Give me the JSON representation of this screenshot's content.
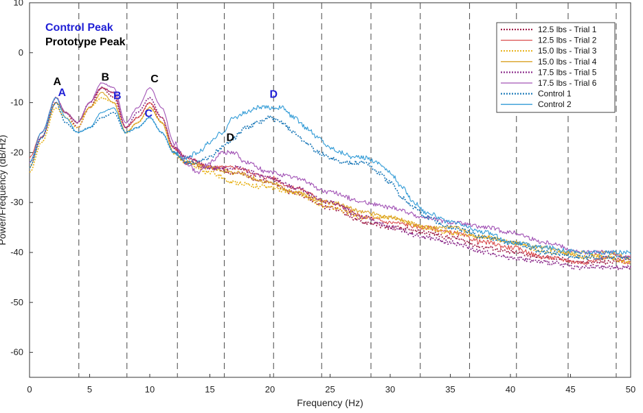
{
  "chart_data": {
    "type": "line",
    "title": "",
    "xlabel": "Frequency (Hz)",
    "ylabel": "Power/Frequency (dB/Hz)",
    "xlim": [
      0,
      50
    ],
    "ylim": [
      -65,
      10
    ],
    "x_ticks": [
      0,
      5,
      10,
      15,
      20,
      25,
      30,
      35,
      40,
      45,
      50
    ],
    "y_ticks": [
      10,
      0,
      -10,
      -20,
      -30,
      -40,
      -50,
      -60
    ],
    "grid": "dashed vertical lines",
    "vertical_dashed_lines": [
      4.1,
      8.1,
      12.3,
      16.2,
      20.3,
      24.3,
      28.4,
      32.5,
      36.6,
      40.5,
      44.8,
      48.8
    ],
    "legend_position": "top-right",
    "key": [
      {
        "text": "Control Peak",
        "color": "#1f1fd6"
      },
      {
        "text": "Prototype Peak",
        "color": "#000000"
      }
    ],
    "series": [
      {
        "name": "12.5 lbs - Trial 1",
        "color": "#a0204a",
        "dash": "dotted",
        "points": [
          [
            0,
            -22
          ],
          [
            1,
            -17
          ],
          [
            2.2,
            -10
          ],
          [
            3,
            -12
          ],
          [
            4,
            -15
          ],
          [
            5,
            -11
          ],
          [
            6,
            -7
          ],
          [
            7,
            -9
          ],
          [
            8,
            -15
          ],
          [
            9,
            -13
          ],
          [
            10,
            -10
          ],
          [
            11,
            -14
          ],
          [
            12,
            -19
          ],
          [
            13,
            -22
          ],
          [
            15,
            -23
          ],
          [
            17,
            -24
          ],
          [
            20,
            -26
          ],
          [
            22,
            -28
          ],
          [
            25,
            -31
          ],
          [
            28,
            -34
          ],
          [
            30,
            -35
          ],
          [
            33,
            -36
          ],
          [
            35,
            -37
          ],
          [
            38,
            -39
          ],
          [
            40,
            -40
          ],
          [
            43,
            -41
          ],
          [
            46,
            -42
          ],
          [
            48,
            -42
          ],
          [
            50,
            -41
          ]
        ]
      },
      {
        "name": "12.5 lbs - Trial 2",
        "color": "#d94a4a",
        "dash": "solid",
        "points": [
          [
            0,
            -21
          ],
          [
            1,
            -16
          ],
          [
            2.2,
            -9
          ],
          [
            3,
            -12
          ],
          [
            4,
            -14
          ],
          [
            5,
            -10
          ],
          [
            6,
            -7
          ],
          [
            7,
            -8
          ],
          [
            8,
            -15
          ],
          [
            9,
            -13
          ],
          [
            10,
            -10
          ],
          [
            11,
            -13
          ],
          [
            12,
            -19
          ],
          [
            13,
            -21
          ],
          [
            15,
            -23
          ],
          [
            17,
            -23
          ],
          [
            20,
            -25
          ],
          [
            22,
            -27
          ],
          [
            25,
            -30
          ],
          [
            28,
            -33
          ],
          [
            30,
            -34
          ],
          [
            33,
            -35
          ],
          [
            35,
            -36
          ],
          [
            38,
            -38
          ],
          [
            40,
            -39
          ],
          [
            43,
            -41
          ],
          [
            46,
            -42
          ],
          [
            48,
            -41
          ],
          [
            50,
            -42
          ]
        ]
      },
      {
        "name": "15.0 lbs - Trial 3",
        "color": "#e8b21a",
        "dash": "dotted",
        "points": [
          [
            0,
            -24
          ],
          [
            1,
            -18
          ],
          [
            2.2,
            -11
          ],
          [
            3,
            -13
          ],
          [
            4,
            -15
          ],
          [
            5,
            -11
          ],
          [
            6,
            -9
          ],
          [
            7,
            -10
          ],
          [
            8,
            -16
          ],
          [
            9,
            -14
          ],
          [
            10,
            -11
          ],
          [
            11,
            -14
          ],
          [
            12,
            -20
          ],
          [
            13,
            -22
          ],
          [
            15,
            -24
          ],
          [
            17,
            -26
          ],
          [
            20,
            -27
          ],
          [
            22,
            -28
          ],
          [
            25,
            -31
          ],
          [
            28,
            -33
          ],
          [
            30,
            -33
          ],
          [
            33,
            -35
          ],
          [
            35,
            -36
          ],
          [
            38,
            -37
          ],
          [
            40,
            -38
          ],
          [
            43,
            -40
          ],
          [
            46,
            -40
          ],
          [
            48,
            -41
          ],
          [
            50,
            -42
          ]
        ]
      },
      {
        "name": "15.0 lbs - Trial 4",
        "color": "#d9a020",
        "dash": "solid",
        "points": [
          [
            0,
            -23
          ],
          [
            1,
            -17
          ],
          [
            2.2,
            -10
          ],
          [
            3,
            -12
          ],
          [
            4,
            -14
          ],
          [
            5,
            -11
          ],
          [
            6,
            -8
          ],
          [
            7,
            -10
          ],
          [
            8,
            -16
          ],
          [
            9,
            -14
          ],
          [
            10,
            -11
          ],
          [
            11,
            -14
          ],
          [
            12,
            -20
          ],
          [
            13,
            -22
          ],
          [
            15,
            -23
          ],
          [
            17,
            -24
          ],
          [
            20,
            -26
          ],
          [
            22,
            -28
          ],
          [
            25,
            -30
          ],
          [
            28,
            -32
          ],
          [
            30,
            -33
          ],
          [
            33,
            -35
          ],
          [
            35,
            -35
          ],
          [
            38,
            -37
          ],
          [
            40,
            -38
          ],
          [
            43,
            -39
          ],
          [
            46,
            -41
          ],
          [
            48,
            -40
          ],
          [
            50,
            -41
          ]
        ]
      },
      {
        "name": "17.5 lbs - Trial 5",
        "color": "#8a2a8a",
        "dash": "dotted",
        "points": [
          [
            0,
            -22
          ],
          [
            1,
            -17
          ],
          [
            2.2,
            -9
          ],
          [
            3,
            -12
          ],
          [
            4,
            -14
          ],
          [
            5,
            -10
          ],
          [
            6,
            -7
          ],
          [
            7,
            -8
          ],
          [
            8,
            -15
          ],
          [
            9,
            -12
          ],
          [
            10,
            -9
          ],
          [
            11,
            -13
          ],
          [
            12,
            -19
          ],
          [
            13,
            -21
          ],
          [
            15,
            -23
          ],
          [
            17,
            -23
          ],
          [
            20,
            -25
          ],
          [
            22,
            -27
          ],
          [
            25,
            -30
          ],
          [
            28,
            -33
          ],
          [
            30,
            -35
          ],
          [
            33,
            -37
          ],
          [
            35,
            -38
          ],
          [
            38,
            -40
          ],
          [
            40,
            -41
          ],
          [
            43,
            -42
          ],
          [
            46,
            -43
          ],
          [
            48,
            -43
          ],
          [
            50,
            -43
          ]
        ]
      },
      {
        "name": "17.5 lbs - Trial 6",
        "color": "#a050b4",
        "dash": "solid",
        "points": [
          [
            0,
            -22
          ],
          [
            1,
            -16
          ],
          [
            2.2,
            -9
          ],
          [
            3,
            -12
          ],
          [
            4,
            -14
          ],
          [
            5,
            -10
          ],
          [
            6,
            -6
          ],
          [
            7,
            -7
          ],
          [
            8,
            -14
          ],
          [
            9,
            -11
          ],
          [
            10,
            -7
          ],
          [
            11,
            -11
          ],
          [
            12,
            -18
          ],
          [
            13,
            -22
          ],
          [
            14,
            -24
          ],
          [
            15,
            -22
          ],
          [
            16,
            -20
          ],
          [
            17,
            -20
          ],
          [
            18,
            -22
          ],
          [
            20,
            -24
          ],
          [
            22,
            -25
          ],
          [
            25,
            -28
          ],
          [
            28,
            -30
          ],
          [
            30,
            -31
          ],
          [
            33,
            -33
          ],
          [
            35,
            -34
          ],
          [
            38,
            -35
          ],
          [
            40,
            -36
          ],
          [
            43,
            -38
          ],
          [
            46,
            -40
          ],
          [
            48,
            -40
          ],
          [
            50,
            -41
          ]
        ]
      },
      {
        "name": "Control 1",
        "color": "#1a78b8",
        "dash": "dotted",
        "points": [
          [
            0,
            -23
          ],
          [
            1,
            -17
          ],
          [
            2.2,
            -10
          ],
          [
            3,
            -14
          ],
          [
            4,
            -16
          ],
          [
            5,
            -15
          ],
          [
            6,
            -13
          ],
          [
            7,
            -12
          ],
          [
            8,
            -16
          ],
          [
            9,
            -15
          ],
          [
            10,
            -13
          ],
          [
            11,
            -16
          ],
          [
            12,
            -20
          ],
          [
            13,
            -22
          ],
          [
            14,
            -22
          ],
          [
            15,
            -21
          ],
          [
            16,
            -19
          ],
          [
            17,
            -17
          ],
          [
            18,
            -15
          ],
          [
            19,
            -14
          ],
          [
            20,
            -13
          ],
          [
            21,
            -14
          ],
          [
            22,
            -16
          ],
          [
            23,
            -18
          ],
          [
            24,
            -20
          ],
          [
            25,
            -21
          ],
          [
            26,
            -22
          ],
          [
            27,
            -22
          ],
          [
            28,
            -22
          ],
          [
            29,
            -24
          ],
          [
            30,
            -26
          ],
          [
            31,
            -29
          ],
          [
            32,
            -31
          ],
          [
            33,
            -33
          ],
          [
            35,
            -35
          ],
          [
            38,
            -37
          ],
          [
            40,
            -38
          ],
          [
            43,
            -40
          ],
          [
            46,
            -41
          ],
          [
            48,
            -41
          ],
          [
            50,
            -41
          ]
        ]
      },
      {
        "name": "Control 2",
        "color": "#2f9ad6",
        "dash": "solid",
        "points": [
          [
            0,
            -22
          ],
          [
            1,
            -16
          ],
          [
            2.2,
            -9
          ],
          [
            3,
            -13
          ],
          [
            4,
            -16
          ],
          [
            5,
            -15
          ],
          [
            6,
            -12
          ],
          [
            7,
            -11
          ],
          [
            8,
            -16
          ],
          [
            9,
            -15
          ],
          [
            10,
            -13
          ],
          [
            11,
            -16
          ],
          [
            12,
            -20
          ],
          [
            13,
            -21
          ],
          [
            14,
            -20
          ],
          [
            15,
            -18
          ],
          [
            16,
            -16
          ],
          [
            17,
            -13
          ],
          [
            18,
            -12
          ],
          [
            19,
            -11
          ],
          [
            20,
            -11
          ],
          [
            21,
            -11
          ],
          [
            22,
            -13
          ],
          [
            23,
            -15
          ],
          [
            24,
            -17
          ],
          [
            25,
            -19
          ],
          [
            26,
            -20
          ],
          [
            27,
            -21
          ],
          [
            28,
            -21
          ],
          [
            29,
            -22
          ],
          [
            30,
            -24
          ],
          [
            31,
            -27
          ],
          [
            32,
            -30
          ],
          [
            33,
            -32
          ],
          [
            35,
            -34
          ],
          [
            38,
            -36
          ],
          [
            40,
            -38
          ],
          [
            43,
            -39
          ],
          [
            46,
            -40
          ],
          [
            48,
            -40
          ],
          [
            50,
            -40
          ]
        ]
      }
    ],
    "peak_labels": [
      {
        "text": "A",
        "x": 2.3,
        "y": -6.5,
        "color": "#000000"
      },
      {
        "text": "A",
        "x": 2.7,
        "y": -8.7,
        "color": "#1f1fd6"
      },
      {
        "text": "B",
        "x": 6.3,
        "y": -5.6,
        "color": "#000000"
      },
      {
        "text": "B",
        "x": 7.3,
        "y": -9.3,
        "color": "#1f1fd6"
      },
      {
        "text": "C",
        "x": 10.4,
        "y": -5.9,
        "color": "#000000"
      },
      {
        "text": "C",
        "x": 9.9,
        "y": -12.9,
        "color": "#1f1fd6"
      },
      {
        "text": "D",
        "x": 16.7,
        "y": -17.7,
        "color": "#000000"
      },
      {
        "text": "D",
        "x": 20.3,
        "y": -9.0,
        "color": "#1f1fd6"
      }
    ]
  }
}
